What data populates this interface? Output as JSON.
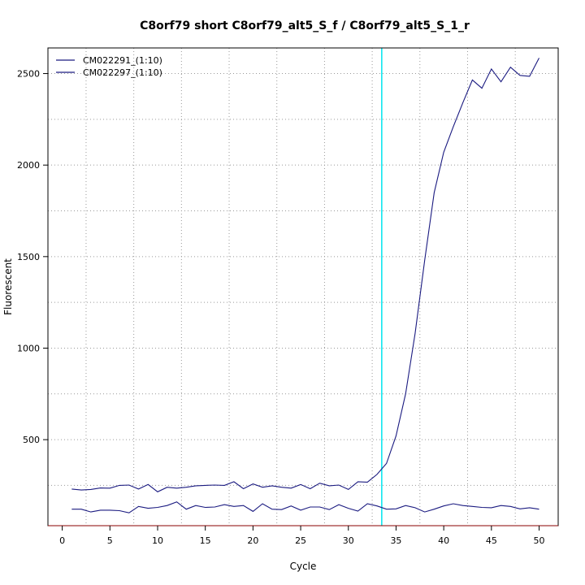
{
  "chart_data": {
    "type": "line",
    "title": "C8orf79 short C8orf79_alt5_S_f / C8orf79_alt5_S_1_r",
    "xlabel": "Cycle",
    "ylabel": "Fluorescent",
    "xlim": [
      -1.5,
      52
    ],
    "ylim": [
      30,
      2640
    ],
    "x_ticks": [
      0,
      5,
      10,
      15,
      20,
      25,
      30,
      35,
      40,
      45,
      50
    ],
    "y_ticks": [
      500,
      1000,
      1500,
      2000,
      2500
    ],
    "grid": true,
    "legend_position": "top-left",
    "threshold_cycle": 33.5,
    "colors": {
      "series": "#1a1a80",
      "threshold": "#00e5ee",
      "grid": "#999999",
      "x_axis_line": "#8b0000"
    },
    "x": [
      1,
      2,
      3,
      4,
      5,
      6,
      7,
      8,
      9,
      10,
      11,
      12,
      13,
      14,
      15,
      16,
      17,
      18,
      19,
      20,
      21,
      22,
      23,
      24,
      25,
      26,
      27,
      28,
      29,
      30,
      31,
      32,
      33,
      34,
      35,
      36,
      37,
      38,
      39,
      40,
      41,
      42,
      43,
      44,
      45,
      46,
      47,
      48,
      49,
      50
    ],
    "series": [
      {
        "name": "CM022291_(1:10)",
        "values": [
          230,
          225,
          228,
          236,
          235,
          250,
          252,
          230,
          255,
          215,
          240,
          235,
          240,
          248,
          250,
          252,
          250,
          270,
          232,
          258,
          240,
          248,
          240,
          235,
          255,
          232,
          262,
          248,
          252,
          228,
          270,
          268,
          310,
          370,
          520,
          750,
          1080,
          1480,
          1850,
          2070,
          2210,
          2340,
          2465,
          2420,
          2525,
          2455,
          2535,
          2490,
          2485,
          2585
        ]
      },
      {
        "name": "CM022297_(1:10)",
        "values": [
          120,
          120,
          105,
          115,
          115,
          112,
          100,
          135,
          125,
          130,
          140,
          160,
          120,
          140,
          130,
          132,
          145,
          135,
          140,
          108,
          150,
          120,
          118,
          138,
          115,
          132,
          132,
          118,
          145,
          125,
          110,
          150,
          138,
          120,
          122,
          140,
          128,
          105,
          120,
          138,
          150,
          140,
          135,
          130,
          128,
          140,
          135,
          122,
          128,
          120
        ]
      }
    ]
  }
}
